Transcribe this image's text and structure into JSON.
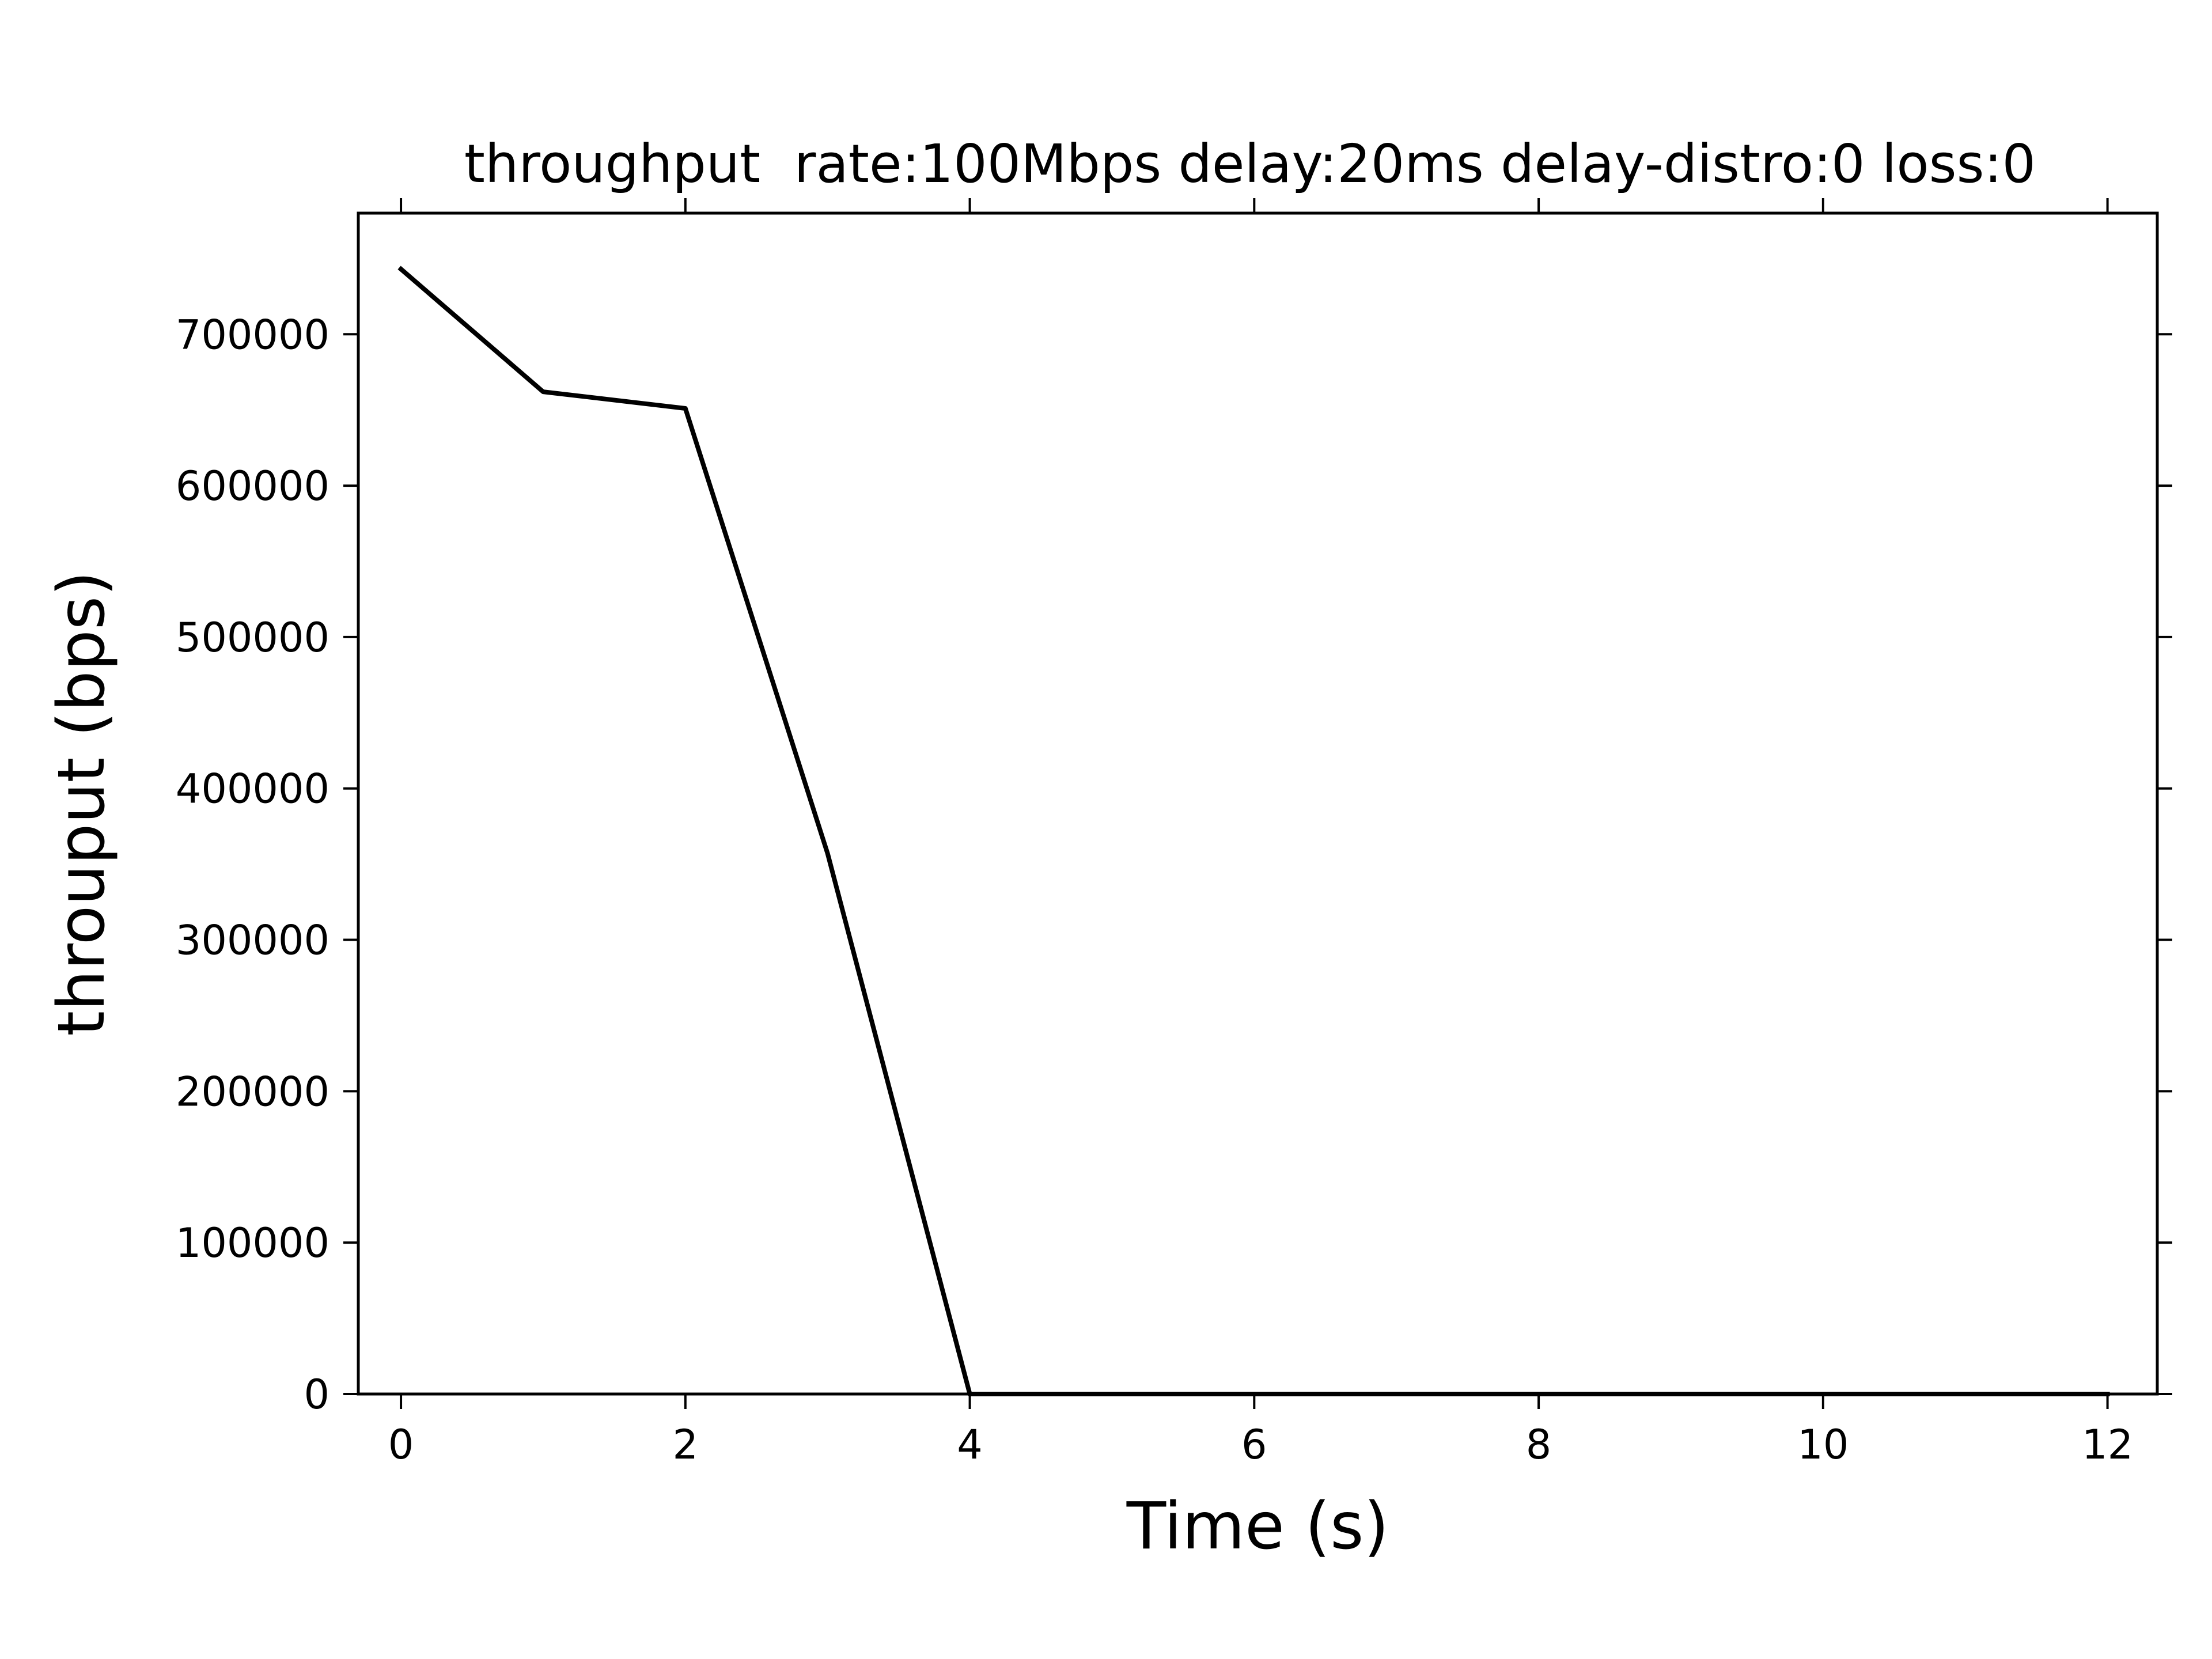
{
  "chart_data": {
    "type": "line",
    "title": "throughput  rate:100Mbps delay:20ms delay-distro:0 loss:0",
    "xlabel": "Time (s)",
    "ylabel": "throuput (bps)",
    "xlim": [
      -0.3,
      12.35
    ],
    "ylim": [
      0,
      780000
    ],
    "xticks": [
      0,
      2,
      4,
      6,
      8,
      10,
      12
    ],
    "xtick_labels": [
      "0",
      "2",
      "4",
      "6",
      "8",
      "10",
      "12"
    ],
    "yticks": [
      0,
      100000,
      200000,
      300000,
      400000,
      500000,
      600000,
      700000
    ],
    "ytick_labels": [
      "0",
      "100000",
      "200000",
      "300000",
      "400000",
      "500000",
      "600000",
      "700000"
    ],
    "grid": false,
    "x": [
      0,
      1,
      2,
      3,
      4,
      5,
      6,
      7,
      8,
      9,
      10,
      11,
      12
    ],
    "series": [
      {
        "color": "#000000",
        "values": [
          743000,
          662000,
          651000,
          357000,
          0,
          0,
          0,
          0,
          0,
          0,
          0,
          0,
          0
        ]
      }
    ]
  }
}
